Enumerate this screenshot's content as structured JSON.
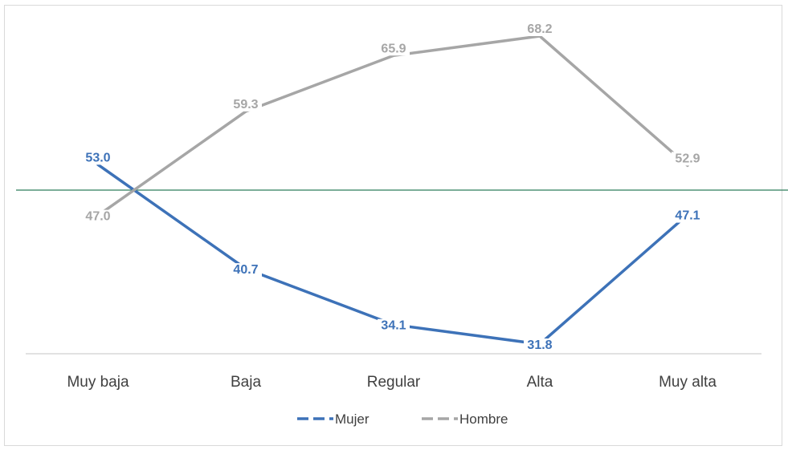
{
  "chart_data": {
    "type": "line",
    "categories": [
      "Muy baja",
      "Baja",
      "Regular",
      "Alta",
      "Muy alta"
    ],
    "series": [
      {
        "name": "Mujer",
        "values": [
          53.0,
          40.7,
          34.1,
          31.8,
          47.1
        ],
        "color": "#3d72b8",
        "labels": [
          "53.0",
          "40.7",
          "34.1",
          "31.8",
          "47.1"
        ]
      },
      {
        "name": "Hombre",
        "values": [
          47.0,
          59.3,
          65.9,
          68.2,
          52.9
        ],
        "color": "#a6a6a6",
        "labels": [
          "47.0",
          "59.3",
          "65.9",
          "68.2",
          "52.9"
        ]
      }
    ],
    "reference_line": 50,
    "reference_color": "#2e7d5b",
    "ylim": [
      20,
      80
    ],
    "legend_position": "bottom",
    "grid": false
  }
}
